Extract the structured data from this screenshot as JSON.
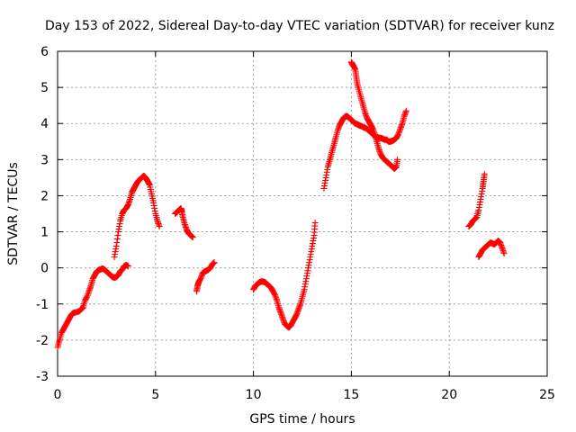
{
  "chart_data": {
    "type": "scatter",
    "title": "Day 153 of 2022, Sidereal Day-to-day VTEC variation (SDTVAR) for receiver kunz",
    "xlabel": "GPS time / hours",
    "ylabel": "SDTVAR / TECUs",
    "xlim": [
      0,
      25
    ],
    "ylim": [
      -3,
      6
    ],
    "xticks": [
      0,
      5,
      10,
      15,
      20,
      25
    ],
    "yticks": [
      -3,
      -2,
      -1,
      0,
      1,
      2,
      3,
      4,
      5,
      6
    ],
    "grid": true,
    "marker": "plus",
    "color": "#ff0000",
    "series": [
      {
        "points": [
          [
            0.0,
            -2.2
          ],
          [
            0.1,
            -2.0
          ],
          [
            0.2,
            -1.8
          ],
          [
            0.3,
            -1.7
          ],
          [
            0.4,
            -1.6
          ],
          [
            0.5,
            -1.5
          ],
          [
            0.6,
            -1.4
          ],
          [
            0.7,
            -1.3
          ],
          [
            0.8,
            -1.25
          ],
          [
            1.0,
            -1.22
          ],
          [
            1.1,
            -1.2
          ],
          [
            1.2,
            -1.15
          ],
          [
            1.3,
            -1.1
          ],
          [
            1.4,
            -0.9
          ],
          [
            1.5,
            -0.8
          ],
          [
            1.6,
            -0.65
          ],
          [
            1.7,
            -0.5
          ],
          [
            1.8,
            -0.3
          ],
          [
            1.9,
            -0.2
          ],
          [
            2.0,
            -0.1
          ],
          [
            2.1,
            -0.06
          ],
          [
            2.2,
            -0.04
          ],
          [
            2.3,
            -0.02
          ],
          [
            2.4,
            -0.05
          ],
          [
            2.5,
            -0.1
          ],
          [
            2.6,
            -0.15
          ],
          [
            2.7,
            -0.2
          ],
          [
            2.8,
            -0.25
          ],
          [
            2.9,
            -0.27
          ],
          [
            3.0,
            -0.25
          ],
          [
            3.1,
            -0.2
          ],
          [
            3.2,
            -0.1
          ],
          [
            3.3,
            -0.05
          ],
          [
            3.4,
            0.05
          ],
          [
            3.5,
            0.08
          ],
          [
            3.6,
            0.05
          ]
        ]
      },
      {
        "points": [
          [
            2.9,
            0.3
          ],
          [
            3.0,
            0.6
          ],
          [
            3.1,
            1.0
          ],
          [
            3.2,
            1.3
          ],
          [
            3.3,
            1.5
          ],
          [
            3.4,
            1.6
          ],
          [
            3.5,
            1.65
          ],
          [
            3.6,
            1.75
          ],
          [
            3.7,
            1.9
          ],
          [
            3.8,
            2.1
          ],
          [
            3.9,
            2.2
          ],
          [
            4.0,
            2.3
          ],
          [
            4.1,
            2.4
          ],
          [
            4.2,
            2.45
          ],
          [
            4.3,
            2.5
          ],
          [
            4.4,
            2.55
          ],
          [
            4.5,
            2.5
          ],
          [
            4.6,
            2.4
          ],
          [
            4.7,
            2.3
          ],
          [
            4.8,
            2.05
          ],
          [
            4.9,
            1.8
          ],
          [
            5.0,
            1.5
          ],
          [
            5.1,
            1.3
          ],
          [
            5.2,
            1.15
          ]
        ]
      },
      {
        "points": [
          [
            6.0,
            1.5
          ],
          [
            6.1,
            1.55
          ],
          [
            6.2,
            1.6
          ],
          [
            6.3,
            1.65
          ],
          [
            6.35,
            1.55
          ],
          [
            6.4,
            1.4
          ],
          [
            6.5,
            1.2
          ],
          [
            6.6,
            1.05
          ],
          [
            6.7,
            0.95
          ],
          [
            6.8,
            0.9
          ],
          [
            6.9,
            0.85
          ]
        ]
      },
      {
        "points": [
          [
            7.1,
            -0.65
          ],
          [
            7.15,
            -0.5
          ],
          [
            7.2,
            -0.4
          ],
          [
            7.3,
            -0.3
          ],
          [
            7.4,
            -0.15
          ],
          [
            7.5,
            -0.1
          ],
          [
            7.6,
            -0.08
          ],
          [
            7.7,
            -0.05
          ],
          [
            7.8,
            0.0
          ],
          [
            7.9,
            0.1
          ],
          [
            8.0,
            0.15
          ]
        ]
      },
      {
        "points": [
          [
            10.0,
            -0.6
          ],
          [
            10.1,
            -0.5
          ],
          [
            10.2,
            -0.45
          ],
          [
            10.3,
            -0.4
          ],
          [
            10.4,
            -0.38
          ],
          [
            10.5,
            -0.38
          ],
          [
            10.6,
            -0.4
          ],
          [
            10.7,
            -0.45
          ],
          [
            10.8,
            -0.5
          ],
          [
            10.9,
            -0.55
          ],
          [
            11.0,
            -0.65
          ],
          [
            11.1,
            -0.75
          ],
          [
            11.2,
            -0.9
          ],
          [
            11.3,
            -1.1
          ],
          [
            11.4,
            -1.25
          ],
          [
            11.5,
            -1.4
          ],
          [
            11.6,
            -1.55
          ],
          [
            11.7,
            -1.6
          ],
          [
            11.8,
            -1.65
          ],
          [
            11.9,
            -1.6
          ],
          [
            12.0,
            -1.5
          ],
          [
            12.1,
            -1.4
          ],
          [
            12.2,
            -1.3
          ],
          [
            12.3,
            -1.15
          ],
          [
            12.4,
            -1.0
          ],
          [
            12.5,
            -0.8
          ],
          [
            12.6,
            -0.6
          ],
          [
            12.7,
            -0.3
          ],
          [
            12.8,
            0.0
          ],
          [
            12.9,
            0.3
          ],
          [
            13.0,
            0.6
          ],
          [
            13.1,
            0.9
          ],
          [
            13.15,
            1.25
          ]
        ]
      },
      {
        "points": [
          [
            13.6,
            2.2
          ],
          [
            13.7,
            2.5
          ],
          [
            13.8,
            2.8
          ],
          [
            13.9,
            3.0
          ],
          [
            14.0,
            3.2
          ],
          [
            14.1,
            3.4
          ],
          [
            14.2,
            3.6
          ],
          [
            14.3,
            3.8
          ],
          [
            14.4,
            3.95
          ],
          [
            14.5,
            4.05
          ],
          [
            14.6,
            4.15
          ],
          [
            14.7,
            4.2
          ],
          [
            14.8,
            4.2
          ],
          [
            14.9,
            4.15
          ],
          [
            15.0,
            4.1
          ],
          [
            15.1,
            4.05
          ],
          [
            15.2,
            4.0
          ],
          [
            15.3,
            3.98
          ],
          [
            15.4,
            3.95
          ],
          [
            15.5,
            3.93
          ],
          [
            15.6,
            3.9
          ],
          [
            15.7,
            3.88
          ],
          [
            15.8,
            3.85
          ],
          [
            15.9,
            3.8
          ],
          [
            16.0,
            3.75
          ],
          [
            16.1,
            3.7
          ],
          [
            16.2,
            3.65
          ],
          [
            16.3,
            3.62
          ],
          [
            16.4,
            3.6
          ],
          [
            16.5,
            3.6
          ],
          [
            16.6,
            3.58
          ],
          [
            16.7,
            3.55
          ],
          [
            16.8,
            3.55
          ],
          [
            16.9,
            3.5
          ],
          [
            17.0,
            3.5
          ],
          [
            17.1,
            3.52
          ],
          [
            17.2,
            3.55
          ],
          [
            17.3,
            3.6
          ],
          [
            17.4,
            3.7
          ],
          [
            17.5,
            3.85
          ],
          [
            17.6,
            4.0
          ],
          [
            17.7,
            4.2
          ],
          [
            17.8,
            4.35
          ]
        ]
      },
      {
        "points": [
          [
            15.0,
            5.7
          ],
          [
            15.05,
            5.65
          ],
          [
            15.1,
            5.6
          ],
          [
            15.2,
            5.5
          ],
          [
            15.25,
            5.3
          ],
          [
            15.3,
            5.1
          ],
          [
            15.4,
            4.9
          ],
          [
            15.5,
            4.7
          ],
          [
            15.6,
            4.5
          ],
          [
            15.7,
            4.3
          ],
          [
            15.8,
            4.15
          ],
          [
            15.9,
            4.05
          ],
          [
            16.0,
            3.95
          ],
          [
            16.1,
            3.85
          ],
          [
            16.2,
            3.7
          ],
          [
            16.3,
            3.5
          ],
          [
            16.4,
            3.3
          ],
          [
            16.5,
            3.15
          ],
          [
            16.6,
            3.05
          ],
          [
            16.7,
            3.0
          ],
          [
            16.8,
            2.95
          ],
          [
            16.9,
            2.9
          ],
          [
            17.0,
            2.85
          ],
          [
            17.1,
            2.8
          ],
          [
            17.2,
            2.75
          ],
          [
            17.3,
            2.8
          ],
          [
            17.35,
            3.0
          ]
        ]
      },
      {
        "points": [
          [
            21.0,
            1.15
          ],
          [
            21.1,
            1.2
          ],
          [
            21.2,
            1.3
          ],
          [
            21.3,
            1.35
          ],
          [
            21.4,
            1.4
          ],
          [
            21.5,
            1.6
          ],
          [
            21.6,
            1.9
          ],
          [
            21.7,
            2.2
          ],
          [
            21.75,
            2.4
          ],
          [
            21.8,
            2.6
          ]
        ]
      },
      {
        "points": [
          [
            21.5,
            0.3
          ],
          [
            21.6,
            0.4
          ],
          [
            21.7,
            0.5
          ],
          [
            21.8,
            0.55
          ],
          [
            21.9,
            0.6
          ],
          [
            22.0,
            0.65
          ],
          [
            22.1,
            0.7
          ],
          [
            22.2,
            0.68
          ],
          [
            22.3,
            0.65
          ],
          [
            22.4,
            0.7
          ],
          [
            22.5,
            0.75
          ],
          [
            22.6,
            0.7
          ],
          [
            22.7,
            0.55
          ],
          [
            22.8,
            0.4
          ]
        ]
      }
    ]
  }
}
